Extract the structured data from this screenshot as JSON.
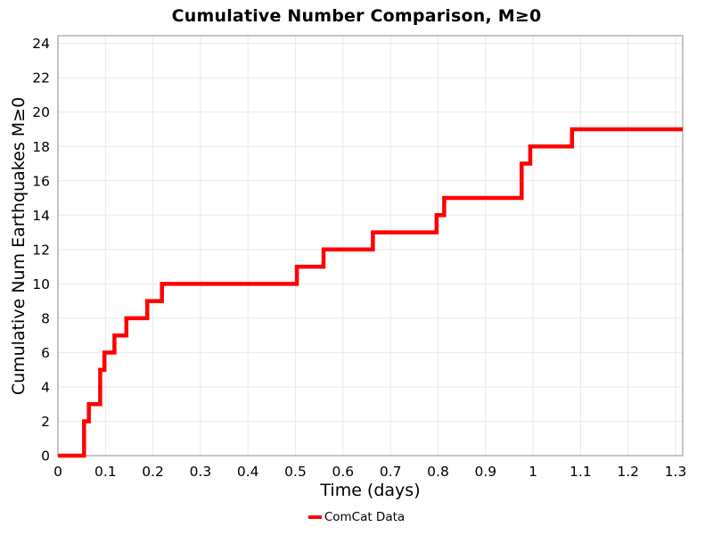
{
  "chart_data": {
    "type": "line",
    "subtype": "cumulative-step",
    "title": "Cumulative Number Comparison, M≥0",
    "xlabel": "Time (days)",
    "ylabel": "Cumulative Num Earthquakes M≥0",
    "xlim": [
      0,
      1.315
    ],
    "ylim": [
      0,
      24.45
    ],
    "grid": true,
    "grid_color": "#e9e9e9",
    "border_color": "#a8a8a8",
    "background_color": "#ffffff",
    "x_ticks": [
      0,
      0.1,
      0.2,
      0.3,
      0.4,
      0.5,
      0.6,
      0.7,
      0.8,
      0.9,
      1.0,
      1.1,
      1.2,
      1.3
    ],
    "x_tick_labels": [
      "0",
      "0.1",
      "0.2",
      "0.3",
      "0.4",
      "0.5",
      "0.6",
      "0.7",
      "0.8",
      "0.9",
      "1",
      "1.1",
      "1.2",
      "1.3"
    ],
    "y_ticks": [
      0,
      2,
      4,
      6,
      8,
      10,
      12,
      14,
      16,
      18,
      20,
      22,
      24
    ],
    "y_tick_labels": [
      "0",
      "2",
      "4",
      "6",
      "8",
      "10",
      "12",
      "14",
      "16",
      "18",
      "20",
      "22",
      "24"
    ],
    "legend": {
      "position": "bottom-center",
      "entries": [
        {
          "label": "ComCat Data",
          "color": "#ff0000"
        }
      ]
    },
    "series": [
      {
        "name": "ComCat Data",
        "color": "#ff0000",
        "line_width": 4.5,
        "step_mode": "post",
        "points": [
          [
            0.0,
            0
          ],
          [
            0.055,
            2
          ],
          [
            0.065,
            3
          ],
          [
            0.089,
            5
          ],
          [
            0.098,
            6
          ],
          [
            0.119,
            7
          ],
          [
            0.144,
            8
          ],
          [
            0.188,
            9
          ],
          [
            0.219,
            10
          ],
          [
            0.503,
            11
          ],
          [
            0.559,
            12
          ],
          [
            0.663,
            13
          ],
          [
            0.797,
            14
          ],
          [
            0.813,
            15
          ],
          [
            0.976,
            17
          ],
          [
            0.994,
            18
          ],
          [
            1.082,
            19
          ],
          [
            1.315,
            19
          ]
        ]
      }
    ]
  }
}
